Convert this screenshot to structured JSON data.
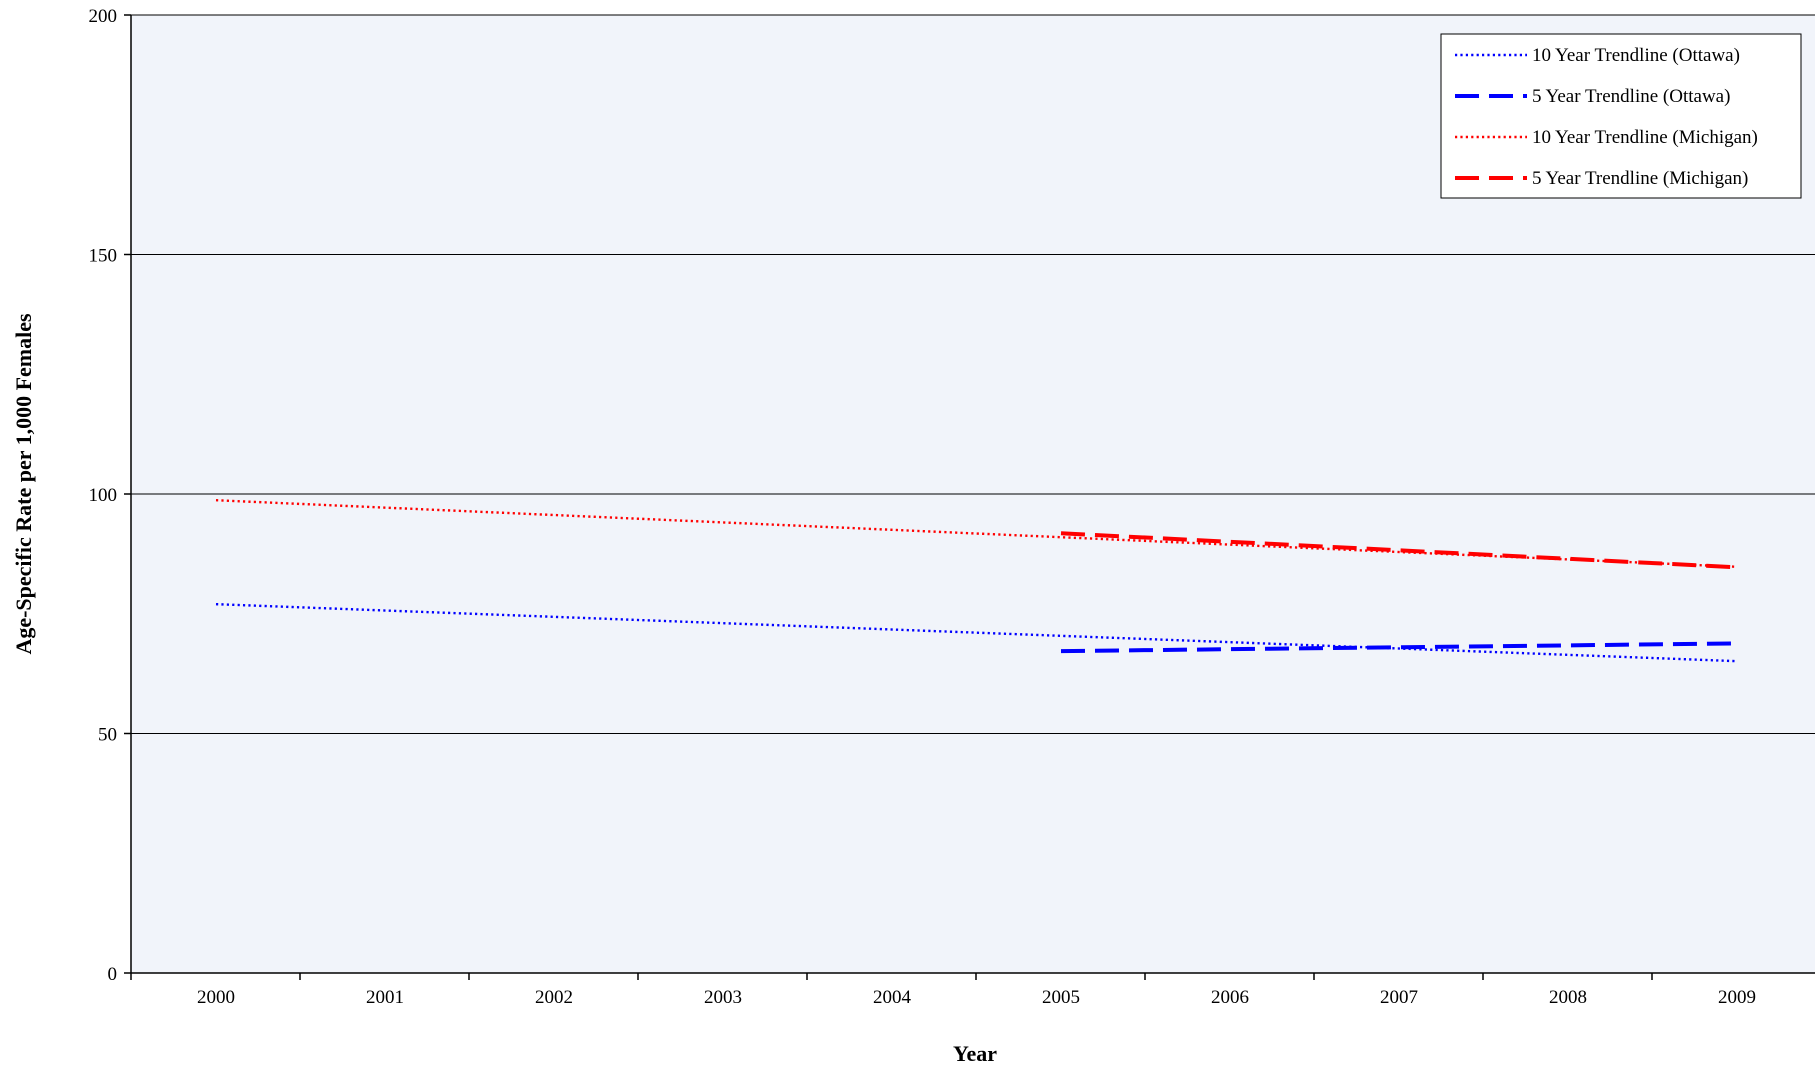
{
  "chart_data": {
    "type": "line",
    "title": "",
    "xlabel": "Year",
    "ylabel": "Age-Specific Rate per 1,000 Females",
    "categories": [
      "2000",
      "2001",
      "2002",
      "2003",
      "2004",
      "2005",
      "2006",
      "2007",
      "2008",
      "2009"
    ],
    "ylim": [
      0,
      200
    ],
    "yticks": [
      0,
      50,
      100,
      150,
      200
    ],
    "grid": true,
    "legend_position": "top-right",
    "series": [
      {
        "name": "10 Year Trendline (Ottawa)",
        "x": [
          "2000",
          "2009"
        ],
        "values": [
          77,
          65.1
        ],
        "color": "#0000ff",
        "dash": "dotted"
      },
      {
        "name": "5 Year Trendline (Ottawa)",
        "x": [
          "2005",
          "2009"
        ],
        "values": [
          67.2,
          68.8
        ],
        "color": "#0000ff",
        "dash": "dashed"
      },
      {
        "name": "10 Year Trendline (Michigan)",
        "x": [
          "2000",
          "2009"
        ],
        "values": [
          98.7,
          84.8
        ],
        "color": "#ff0000",
        "dash": "dotted"
      },
      {
        "name": "5 Year Trendline (Michigan)",
        "x": [
          "2005",
          "2009"
        ],
        "values": [
          91.8,
          84.7
        ],
        "color": "#ff0000",
        "dash": "dashed"
      }
    ],
    "colors": {
      "plot_background": "#f1f4fa",
      "gridline": "#000000"
    }
  }
}
